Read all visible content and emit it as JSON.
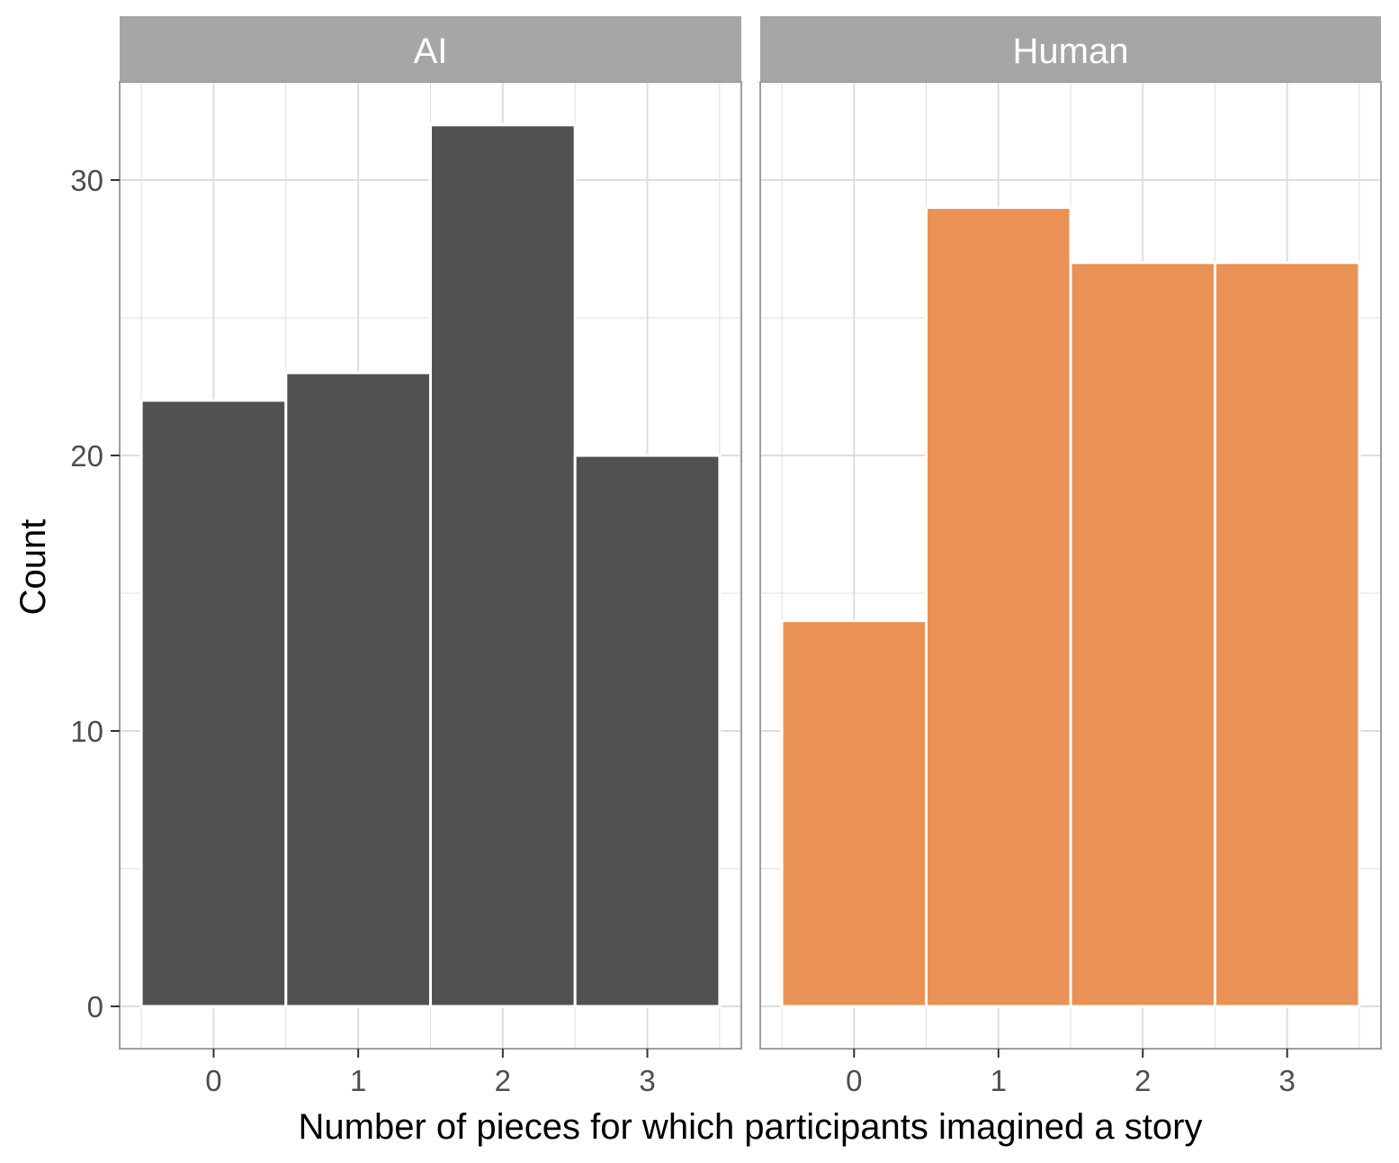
{
  "chart_data": {
    "type": "bar",
    "facets": [
      {
        "label": "AI",
        "color": "#515151",
        "categories": [
          "0",
          "1",
          "2",
          "3"
        ],
        "values": [
          22,
          23,
          32,
          20
        ]
      },
      {
        "label": "Human",
        "color": "#EA9156",
        "categories": [
          "0",
          "1",
          "2",
          "3"
        ],
        "values": [
          14,
          29,
          27,
          27
        ]
      }
    ],
    "xlabel": "Number of pieces for which participants imagined a story",
    "ylabel": "Count",
    "yticks": [
      0,
      10,
      20,
      30
    ],
    "ylim": [
      -1.5,
      33
    ],
    "xlim": [
      -0.65,
      3.65
    ],
    "grid": true,
    "strip_color": "#A6A6A6",
    "panel_border_color": "#9E9E9E",
    "grid_color": "#DEDEDE"
  }
}
